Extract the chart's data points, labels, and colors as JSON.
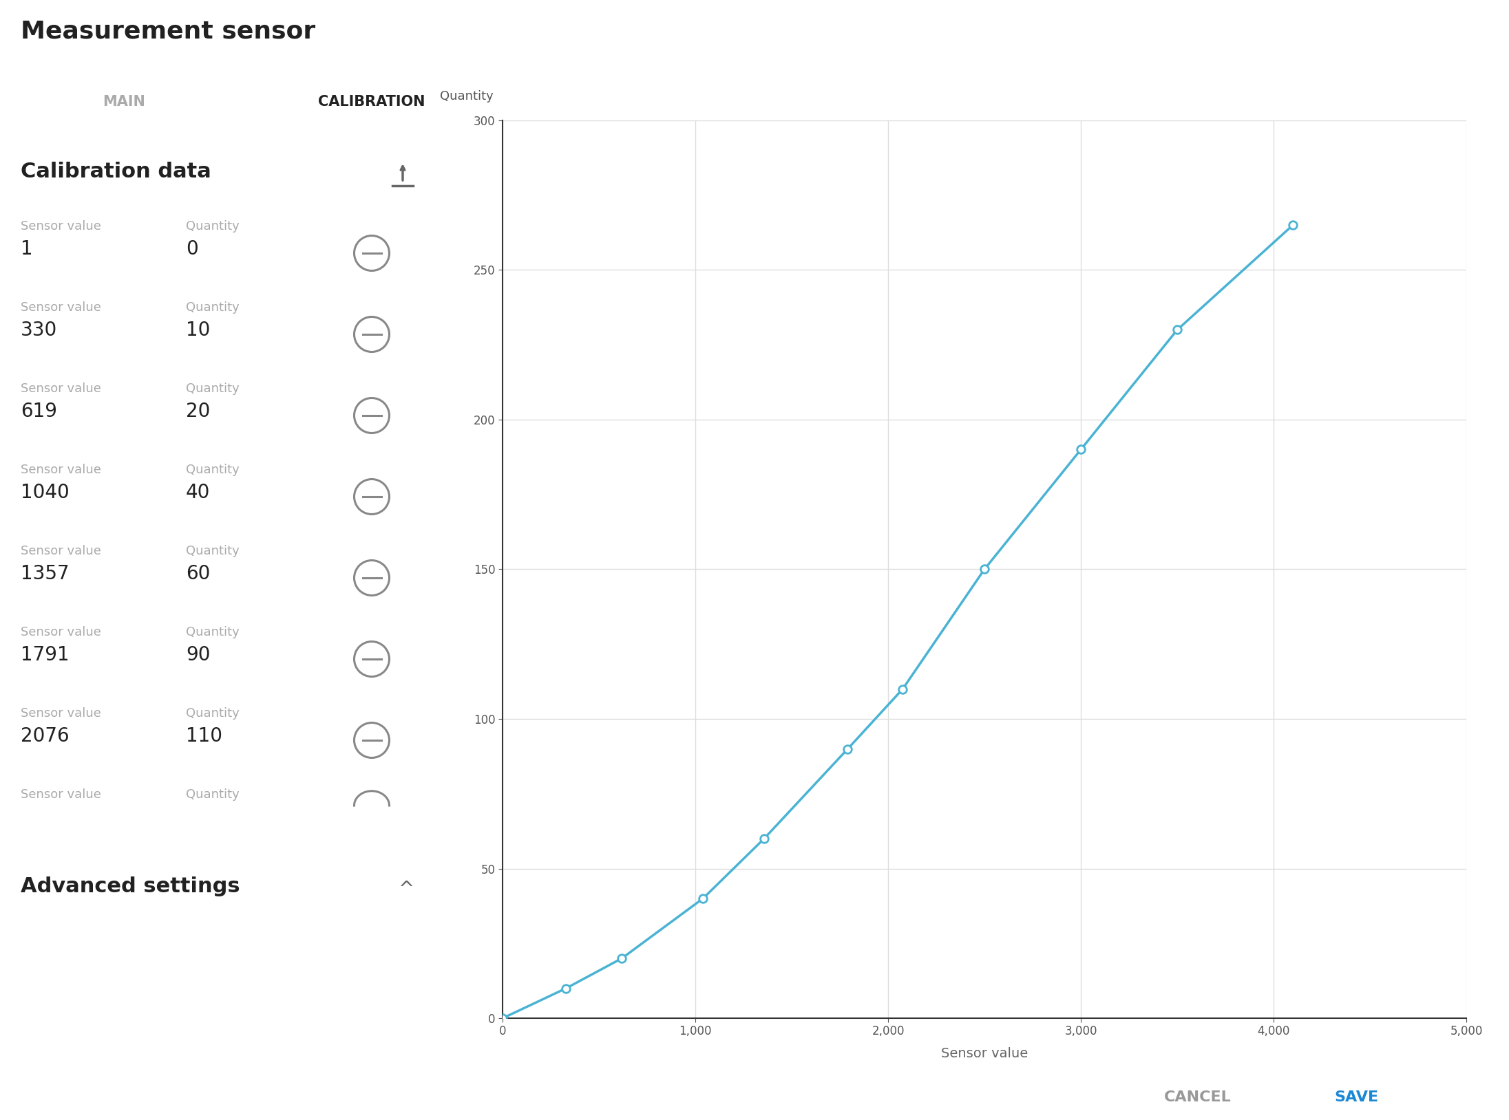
{
  "title": "Measurement sensor",
  "tab_main": "MAIN",
  "tab_calibration": "CALIBRATION",
  "section_title": "Calibration data",
  "advanced_settings": "Advanced settings",
  "cancel_btn": "CANCEL",
  "save_btn": "SAVE",
  "sensor_label": "Sensor value",
  "quantity_label": "Quantity",
  "rows": [
    {
      "sensor": "1",
      "quantity": "0"
    },
    {
      "sensor": "330",
      "quantity": "10"
    },
    {
      "sensor": "619",
      "quantity": "20"
    },
    {
      "sensor": "1040",
      "quantity": "40"
    },
    {
      "sensor": "1357",
      "quantity": "60"
    },
    {
      "sensor": "1791",
      "quantity": "90"
    },
    {
      "sensor": "2076",
      "quantity": "110"
    }
  ],
  "plot_sensor_values": [
    0,
    1,
    330,
    619,
    1040,
    1357,
    1791,
    2076,
    2500,
    3000,
    3500,
    4100
  ],
  "plot_quantity_values": [
    0,
    0,
    10,
    20,
    40,
    60,
    90,
    110,
    150,
    190,
    230,
    265
  ],
  "marker_points_x": [
    1,
    330,
    619,
    1040,
    1357,
    1791,
    2076,
    2500,
    3000,
    3500,
    4100
  ],
  "marker_points_y": [
    0,
    10,
    20,
    40,
    60,
    90,
    110,
    150,
    190,
    230,
    265
  ],
  "xlabel": "Sensor value",
  "ylabel": "Quantity",
  "xlim": [
    0,
    5000
  ],
  "ylim": [
    0,
    300
  ],
  "xticks": [
    0,
    1000,
    2000,
    3000,
    4000,
    5000
  ],
  "xtick_labels": [
    "0",
    "1,000",
    "2,000",
    "3,000",
    "4,000",
    "5,000"
  ],
  "yticks": [
    0,
    50,
    100,
    150,
    200,
    250,
    300
  ],
  "ytick_labels": [
    "0",
    "50",
    "100",
    "150",
    "200",
    "250",
    "300"
  ],
  "line_color": "#4ab3d4",
  "marker_color": "#4ab3d4",
  "bg_color": "#ffffff",
  "divider_color": "#cccccc",
  "scrollbar_bg": "#e8e8e8",
  "scrollbar_thumb": "#bbbbbb",
  "tab_indicator_color": "#2196f3",
  "title_color": "#212121",
  "label_color": "#aaaaaa",
  "value_color": "#212121",
  "btn_cancel_color": "#999999",
  "btn_save_color": "#1a88d4",
  "grid_color": "#dddddd",
  "minus_btn_color": "#888888",
  "upload_arrow_color": "#666666",
  "chevron_color": "#666666"
}
